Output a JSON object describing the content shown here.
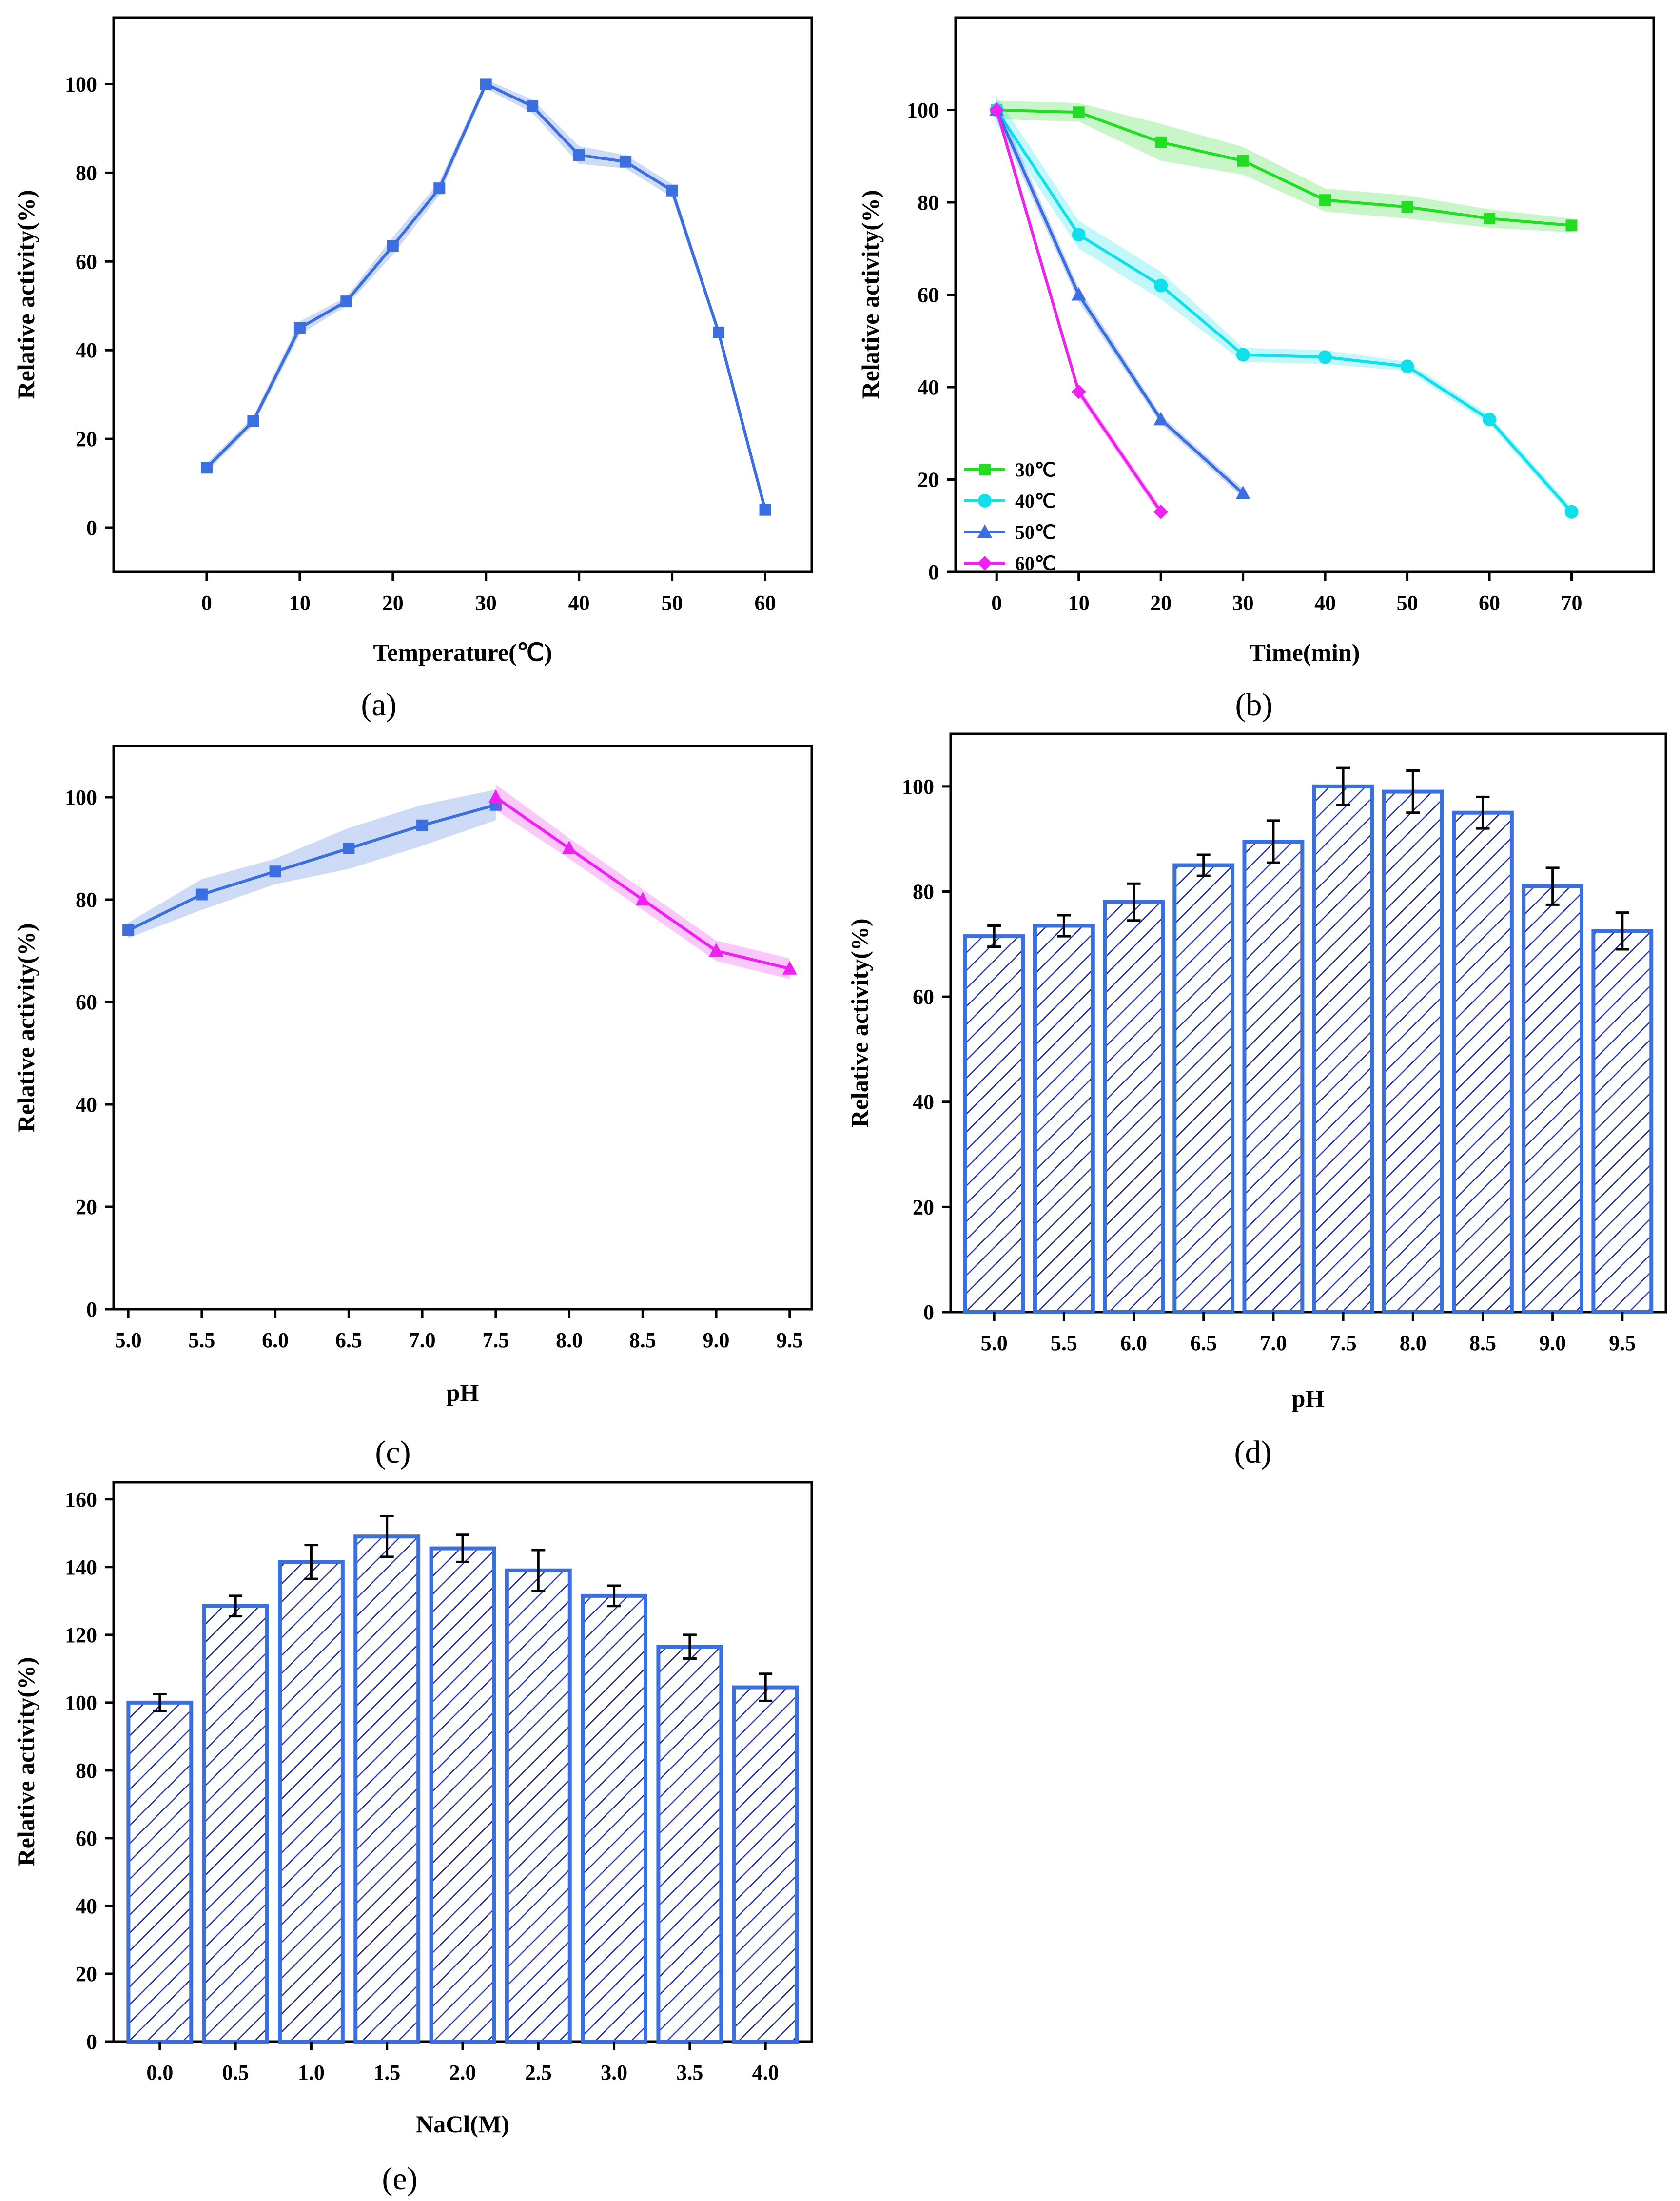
{
  "chart_data": [
    {
      "id": "a",
      "panel_label": "(a)",
      "type": "line",
      "xlabel": "Temperature(℃)",
      "ylabel": "Relative activity(%)",
      "xlim": [
        -10,
        65
      ],
      "ylim": [
        -10,
        115
      ],
      "xticks": [
        0,
        10,
        20,
        30,
        40,
        50,
        60
      ],
      "yticks": [
        0,
        20,
        40,
        60,
        80,
        100
      ],
      "grid": false,
      "series": [
        {
          "color": "#3b6fe0",
          "marker": "square",
          "x": [
            0,
            5,
            10,
            15,
            20,
            25,
            30,
            35,
            40,
            45,
            50,
            55,
            60
          ],
          "y": [
            13.5,
            24,
            45,
            51,
            63.5,
            76.5,
            100,
            95,
            84,
            82.5,
            76,
            44,
            4
          ],
          "band": [
            1,
            1,
            1.5,
            1,
            2,
            1.5,
            1,
            1.5,
            2,
            1.5,
            1.5,
            1,
            1
          ]
        }
      ]
    },
    {
      "id": "b",
      "panel_label": "(b)",
      "type": "line",
      "xlabel": "Time(min)",
      "ylabel": "Relative activity(%)",
      "xlim": [
        -5,
        80
      ],
      "ylim": [
        0,
        120
      ],
      "xticks": [
        0,
        10,
        20,
        30,
        40,
        50,
        60,
        70
      ],
      "yticks": [
        0,
        20,
        40,
        60,
        80,
        100
      ],
      "grid": false,
      "legend_position": "bottom-left",
      "series": [
        {
          "name": "30℃",
          "color": "#22dd22",
          "marker": "square",
          "x": [
            0,
            10,
            20,
            30,
            40,
            50,
            60,
            70
          ],
          "y": [
            100,
            99.5,
            93,
            89,
            80.5,
            79,
            76.5,
            75
          ],
          "band": [
            2,
            2,
            4,
            3,
            2.5,
            2.5,
            2,
            1.5
          ]
        },
        {
          "name": "40℃",
          "color": "#10e0ec",
          "marker": "circle",
          "x": [
            0,
            10,
            20,
            30,
            40,
            50,
            60,
            70
          ],
          "y": [
            100,
            73,
            62,
            47,
            46.5,
            44.5,
            33,
            13
          ],
          "band": [
            3,
            3,
            3,
            1.5,
            1.5,
            1,
            1,
            1
          ]
        },
        {
          "name": "50℃",
          "color": "#3b6fe0",
          "marker": "triangle",
          "x": [
            0,
            10,
            20,
            30
          ],
          "y": [
            100,
            60,
            33,
            17
          ],
          "band": [
            2,
            1.5,
            1,
            1
          ]
        },
        {
          "name": "60℃",
          "color": "#ee22ee",
          "marker": "diamond",
          "x": [
            0,
            10,
            20
          ],
          "y": [
            100,
            39,
            13
          ],
          "band": [
            1,
            1,
            1
          ]
        }
      ]
    },
    {
      "id": "c",
      "panel_label": "(c)",
      "type": "line",
      "xlabel": "pH",
      "ylabel": "Relative activity(%)",
      "xlim": [
        4.9,
        9.65
      ],
      "ylim": [
        0,
        110
      ],
      "xticks": [
        5.0,
        5.5,
        6.0,
        6.5,
        7.0,
        7.5,
        8.0,
        8.5,
        9.0,
        9.5
      ],
      "xtick_labels": [
        "5.0",
        "5.5",
        "6.0",
        "6.5",
        "7.0",
        "7.5",
        "8.0",
        "8.5",
        "9.0",
        "9.5"
      ],
      "yticks": [
        0,
        20,
        40,
        60,
        80,
        100
      ],
      "grid": false,
      "series": [
        {
          "color": "#3b6fe0",
          "marker": "square",
          "x": [
            5.0,
            5.5,
            6.0,
            6.5,
            7.0,
            7.5
          ],
          "y": [
            74,
            81,
            85.5,
            90,
            94.5,
            98.5
          ],
          "band": [
            1.5,
            3,
            2.5,
            4,
            4,
            3
          ]
        },
        {
          "color": "#ee22ee",
          "marker": "triangle",
          "x": [
            7.5,
            8.0,
            8.5,
            9.0,
            9.5
          ],
          "y": [
            100,
            90,
            80,
            70,
            66.5
          ],
          "band": [
            2.5,
            2,
            2,
            2,
            2
          ]
        }
      ]
    },
    {
      "id": "d",
      "panel_label": "(d)",
      "type": "bar",
      "xlabel": "pH",
      "ylabel": "Relative activity(%)",
      "ylim": [
        0,
        110
      ],
      "yticks": [
        0,
        20,
        40,
        60,
        80,
        100
      ],
      "categories": [
        "5.0",
        "5.5",
        "6.0",
        "6.5",
        "7.0",
        "7.5",
        "8.0",
        "8.5",
        "9.0",
        "9.5"
      ],
      "grid": false,
      "series": [
        {
          "color": "#3b6fe0",
          "hatch": "diagonal",
          "values": [
            71.5,
            73.5,
            78,
            85,
            89.5,
            100,
            99,
            95,
            81,
            72.5
          ],
          "errors": [
            2,
            2,
            3.5,
            2,
            4,
            3.5,
            4,
            3,
            3.5,
            3.5
          ]
        }
      ]
    },
    {
      "id": "e",
      "panel_label": "(e)",
      "type": "bar",
      "xlabel": "NaCl(M)",
      "ylabel": "Relative activity(%)",
      "ylim": [
        0,
        165
      ],
      "yticks": [
        0,
        20,
        40,
        60,
        80,
        100,
        120,
        140,
        160
      ],
      "categories": [
        "0.0",
        "0.5",
        "1.0",
        "1.5",
        "2.0",
        "2.5",
        "3.0",
        "3.5",
        "4.0"
      ],
      "grid": false,
      "series": [
        {
          "color": "#3b6fe0",
          "hatch": "diagonal",
          "values": [
            100,
            128.5,
            141.5,
            149,
            145.5,
            139,
            131.5,
            116.5,
            104.5
          ],
          "errors": [
            2.5,
            3,
            5,
            6,
            4,
            6,
            3,
            3.5,
            4
          ]
        }
      ]
    }
  ]
}
